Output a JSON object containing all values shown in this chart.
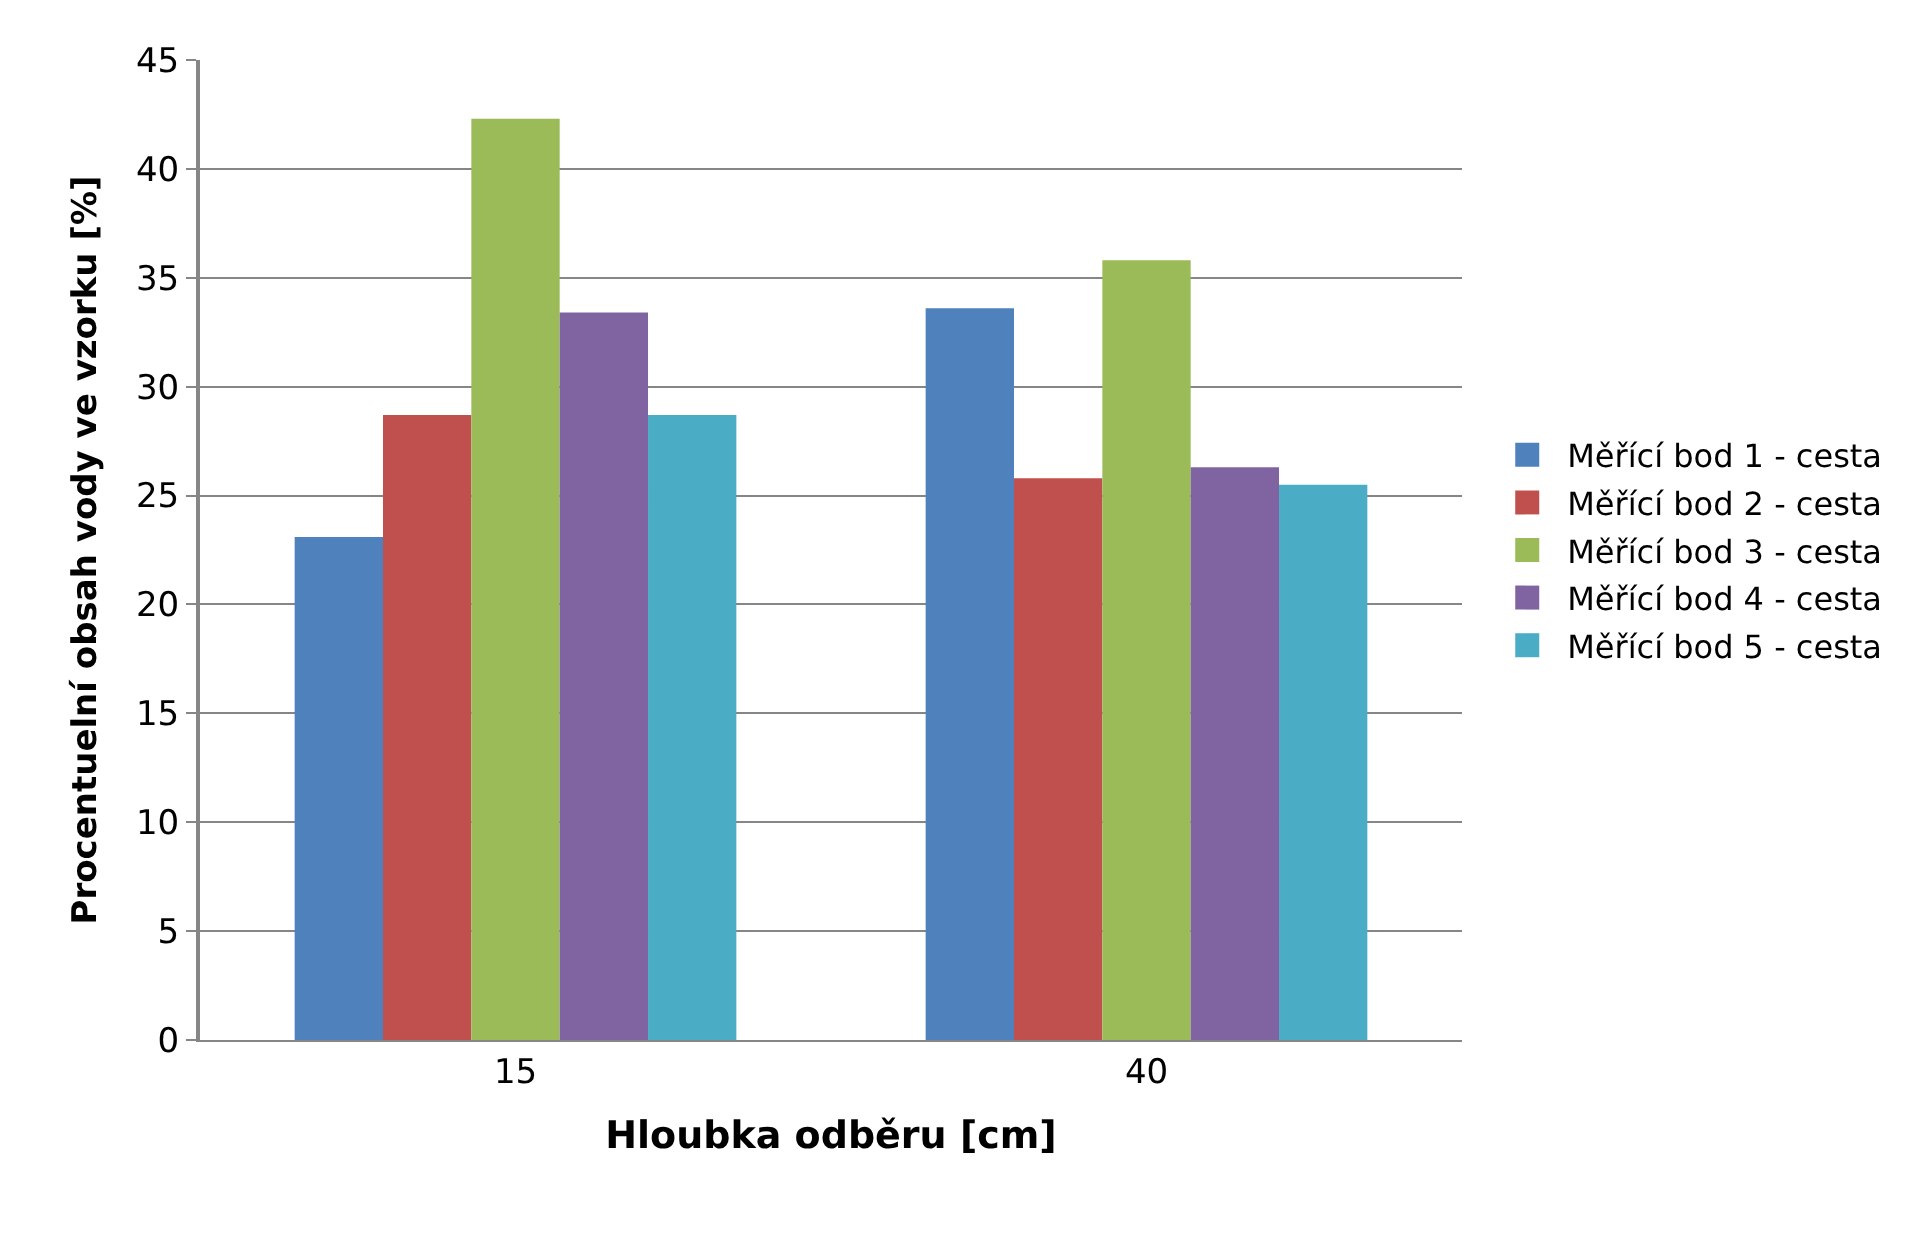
{
  "chart_data": {
    "type": "bar",
    "xlabel": "Hloubka odběru [cm]",
    "ylabel": "Procentuelní obsah vody ve vzorku [%]",
    "categories": [
      "15",
      "40"
    ],
    "series": [
      {
        "name": "Měřící bod 1 - cesta",
        "color": "#4f81bd",
        "values": [
          23.1,
          33.6
        ]
      },
      {
        "name": "Měřící bod 2 - cesta",
        "color": "#c0504d",
        "values": [
          28.7,
          25.8
        ]
      },
      {
        "name": "Měřící bod 3 - cesta",
        "color": "#9bbb59",
        "values": [
          42.3,
          35.8
        ]
      },
      {
        "name": "Měřící bod 4 - cesta",
        "color": "#8064a2",
        "values": [
          33.4,
          26.3
        ]
      },
      {
        "name": "Měřící bod 5 - cesta",
        "color": "#4bacc6",
        "values": [
          28.7,
          25.5
        ]
      }
    ],
    "ylim": [
      0,
      45
    ],
    "yticks": [
      0,
      5,
      10,
      15,
      20,
      25,
      30,
      35,
      40,
      45
    ],
    "grid": "y",
    "legend": "right"
  }
}
